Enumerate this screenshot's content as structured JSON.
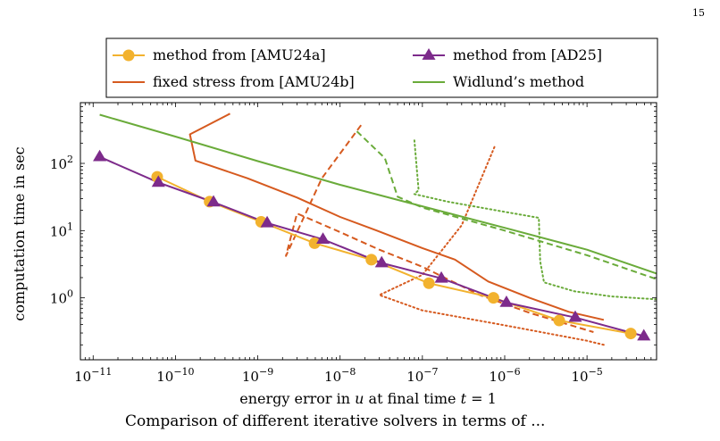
{
  "page_number": "15",
  "caption": "Comparison of different iterative solvers in terms of ...",
  "chart_data": {
    "type": "line",
    "xscale": "log",
    "yscale": "log",
    "xlim": [
      7e-12,
      7e-05
    ],
    "ylim": [
      0.12,
      800
    ],
    "xlabel_prefix": "energy error in ",
    "xlabel_var": "u",
    "xlabel_mid": " at final time ",
    "xlabel_t": "t",
    "xlabel_suffix": " = 1",
    "ylabel": "computation time in sec",
    "xticks": [
      {
        "value": 1e-11,
        "label": "10",
        "exp": "−11"
      },
      {
        "value": 1e-10,
        "label": "10",
        "exp": "−10"
      },
      {
        "value": 1e-09,
        "label": "10",
        "exp": "−9"
      },
      {
        "value": 1e-08,
        "label": "10",
        "exp": "−8"
      },
      {
        "value": 1e-07,
        "label": "10",
        "exp": "−7"
      },
      {
        "value": 1e-06,
        "label": "10",
        "exp": "−6"
      },
      {
        "value": 1e-05,
        "label": "10",
        "exp": "−5"
      }
    ],
    "yticks": [
      {
        "value": 1,
        "label": "10",
        "exp": "0"
      },
      {
        "value": 10,
        "label": "10",
        "exp": "1"
      },
      {
        "value": 100,
        "label": "10",
        "exp": "2"
      }
    ],
    "legend_position": "top",
    "series": [
      {
        "name": "method from [AMU24a]",
        "color": "#f2b22e",
        "style": "solid",
        "marker": "circle",
        "x": [
          6e-11,
          2.6e-10,
          1.1e-09,
          4.9e-09,
          2.4e-08,
          1.2e-07,
          7.3e-07,
          4.6e-06,
          3.4e-05
        ],
        "y": [
          63,
          27,
          13.5,
          6.5,
          3.7,
          1.65,
          1.0,
          0.46,
          0.295
        ]
      },
      {
        "name": "method from [AD25]",
        "color": "#7d2b8b",
        "style": "solid",
        "marker": "triangle",
        "x": [
          1.2e-11,
          6.2e-11,
          2.9e-10,
          1.3e-09,
          6.2e-09,
          3.2e-08,
          1.7e-07,
          1.05e-06,
          7.2e-06,
          4.9e-05
        ],
        "y": [
          125,
          52,
          26.5,
          13,
          7.4,
          3.3,
          1.95,
          0.85,
          0.51,
          0.27
        ]
      },
      {
        "name": "fixed stress from [AMU24b]",
        "color": "#d65a1f",
        "style": "solid",
        "marker": "none",
        "x": [
          4.6e-10,
          1.5e-10,
          1.75e-10,
          7.5e-10,
          3e-09,
          1e-08,
          2.8e-08,
          1e-07,
          2.5e-07,
          6.3e-07,
          2e-06,
          6e-06,
          1.6e-05
        ],
        "y": [
          550,
          270,
          110,
          60,
          31,
          16,
          10,
          5.5,
          3.7,
          1.75,
          1.0,
          0.62,
          0.47
        ]
      },
      {
        "name": "Widlund’s method",
        "color": "#6aab3a",
        "style": "solid",
        "marker": "none",
        "x": [
          1.2e-11,
          1e-10,
          1e-09,
          1e-08,
          1e-07,
          1e-06,
          1e-05,
          7e-05
        ],
        "y": [
          530,
          250,
          108,
          48,
          23,
          11,
          5.2,
          2.3
        ]
      },
      {
        "name": "",
        "color": "#d65a1f",
        "style": "dashed",
        "marker": "none",
        "x": [
          1.8e-08,
          6e-09,
          2.2e-09,
          3e-09,
          1e-08,
          3e-08,
          1e-07,
          5e-07,
          2e-06,
          1.2e-05
        ],
        "y": [
          370,
          60,
          4.2,
          18,
          9.5,
          5.2,
          2.9,
          1.1,
          0.6,
          0.31
        ]
      },
      {
        "name": "",
        "color": "#d65a1f",
        "style": "dotted",
        "marker": "none",
        "x": [
          7.5e-07,
          3e-07,
          1e-07,
          3e-08,
          1e-07,
          1e-06,
          1e-05,
          1.6e-05
        ],
        "y": [
          175,
          12,
          2.2,
          1.1,
          0.65,
          0.39,
          0.23,
          0.2
        ]
      },
      {
        "name": "",
        "color": "#6aab3a",
        "style": "dashed",
        "marker": "none",
        "x": [
          1.6e-08,
          3.5e-08,
          5e-08,
          1e-07,
          1e-06,
          1e-05,
          7e-05
        ],
        "y": [
          300,
          120,
          32,
          22,
          10,
          4.3,
          1.9
        ]
      },
      {
        "name": "",
        "color": "#6aab3a",
        "style": "dotted",
        "marker": "none",
        "x": [
          8e-08,
          9e-08,
          8e-08,
          2e-07,
          1e-06,
          2.6e-06,
          2.7e-06,
          3e-06,
          7e-06,
          2e-05,
          7e-05
        ],
        "y": [
          220,
          40,
          35,
          27,
          19,
          15.5,
          3.5,
          1.7,
          1.25,
          1.05,
          0.95
        ]
      }
    ]
  }
}
